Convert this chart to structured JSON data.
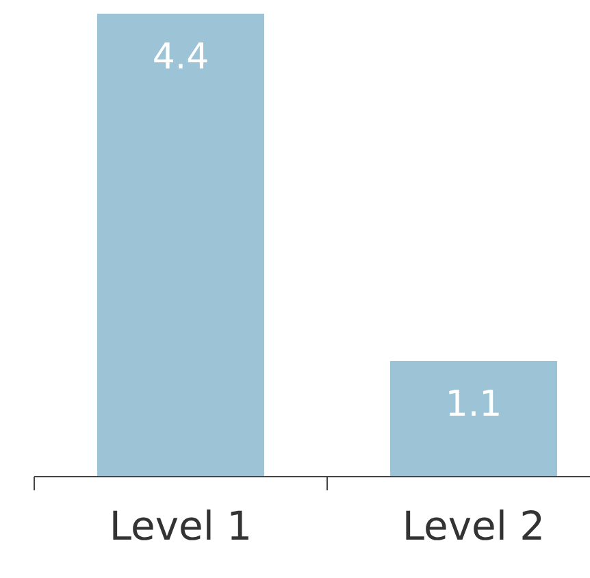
{
  "chart_data": {
    "type": "bar",
    "categories": [
      "Level 1",
      "Level 2"
    ],
    "values": [
      4.4,
      1.1
    ],
    "color": "#9cc4d6",
    "data_labels": true
  }
}
